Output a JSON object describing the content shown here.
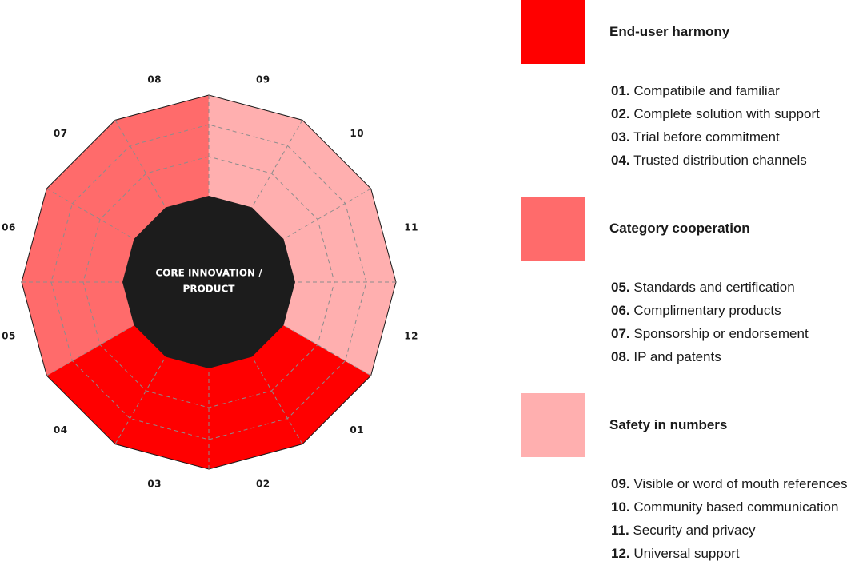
{
  "diagram": {
    "core_label_lines": [
      "CORE INNOVATION /",
      "PRODUCT"
    ],
    "core_color": "#1c1c1c",
    "segments": [
      {
        "num": "01",
        "group": 0
      },
      {
        "num": "02",
        "group": 0
      },
      {
        "num": "03",
        "group": 0
      },
      {
        "num": "04",
        "group": 0
      },
      {
        "num": "05",
        "group": 1
      },
      {
        "num": "06",
        "group": 1
      },
      {
        "num": "07",
        "group": 1
      },
      {
        "num": "08",
        "group": 1
      },
      {
        "num": "09",
        "group": 2
      },
      {
        "num": "10",
        "group": 2
      },
      {
        "num": "11",
        "group": 2
      },
      {
        "num": "12",
        "group": 2
      }
    ]
  },
  "groups": [
    {
      "title": "End-user harmony",
      "color": "#ff0000",
      "items": [
        {
          "num": "01.",
          "text": "Compatibile and familiar"
        },
        {
          "num": "02.",
          "text": "Complete solution with support"
        },
        {
          "num": "03.",
          "text": "Trial before commitment"
        },
        {
          "num": "04.",
          "text": "Trusted distribution channels"
        }
      ]
    },
    {
      "title": "Category cooperation",
      "color": "#ff6b6b",
      "items": [
        {
          "num": "05.",
          "text": "Standards and certification"
        },
        {
          "num": "06.",
          "text": "Complimentary products"
        },
        {
          "num": "07.",
          "text": "Sponsorship or endorsement"
        },
        {
          "num": "08.",
          "text": "IP and patents"
        }
      ]
    },
    {
      "title": "Safety in numbers",
      "color": "#ffafaf",
      "items": [
        {
          "num": "09.",
          "text": "Visible or word of mouth references"
        },
        {
          "num": "10.",
          "text": "Community based communication"
        },
        {
          "num": "11.",
          "text": "Security and privacy"
        },
        {
          "num": "12.",
          "text": "Universal support"
        }
      ]
    }
  ]
}
